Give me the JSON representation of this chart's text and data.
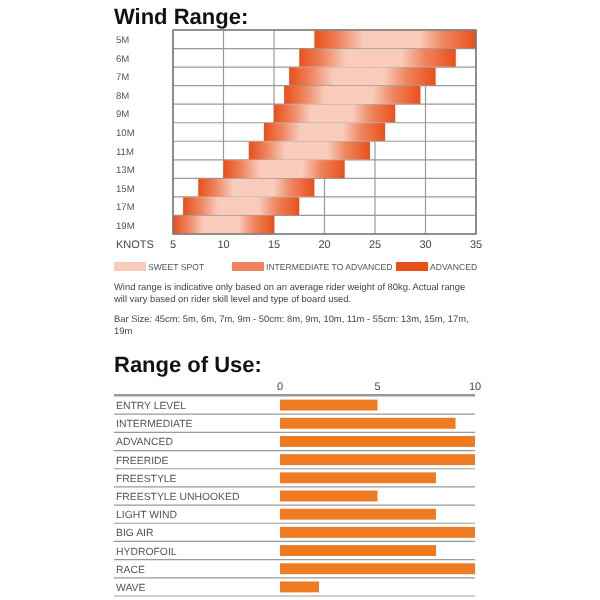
{
  "chart_data": [
    {
      "type": "bar",
      "title": "Wind Range:",
      "orientation": "horizontal",
      "xlabel": "KNOTS",
      "categories": [
        "5M",
        "6M",
        "7M",
        "8M",
        "9M",
        "10M",
        "11M",
        "13M",
        "15M",
        "17M",
        "19M"
      ],
      "base": [
        19,
        17.5,
        16.5,
        16,
        15,
        14,
        12.5,
        10,
        7.5,
        6,
        5
      ],
      "values": [
        16,
        15.5,
        14.5,
        13.5,
        12,
        12,
        12,
        12,
        11.5,
        11.5,
        10
      ],
      "color": "#e8501a",
      "xlim": [
        5,
        35
      ],
      "xticks": [
        5,
        10,
        15,
        20,
        25,
        30,
        35
      ],
      "grid": true,
      "annotations": [
        "SWEET SPOT",
        "INTERMEDIATE TO ADVANCED",
        "ADVANCED",
        "Wind range is indicative only based on an average rider weight of 80kg. Actual range will vary based on rider skill level and type of board used.",
        "Bar Size: 45cm: 5m, 6m, 7m, 9m - 50cm: 8m, 9m, 10m, 11m - 55cm: 13m, 15m, 17m, 19m"
      ]
    },
    {
      "type": "bar",
      "title": "Range of Use:",
      "orientation": "horizontal",
      "categories": [
        "ENTRY LEVEL",
        "INTERMEDIATE",
        "ADVANCED",
        "FREERIDE",
        "FREESTYLE",
        "FREESTYLE UNHOOKED",
        "LIGHT WIND",
        "BIG AIR",
        "HYDROFOIL",
        "RACE",
        "WAVE"
      ],
      "values": [
        5,
        9,
        10,
        10,
        8,
        5,
        8,
        10,
        8,
        10,
        2
      ],
      "color": "#ee7a22",
      "xlim": [
        0,
        10
      ],
      "xticks": [
        0,
        5,
        10
      ],
      "grid": "y"
    }
  ]
}
